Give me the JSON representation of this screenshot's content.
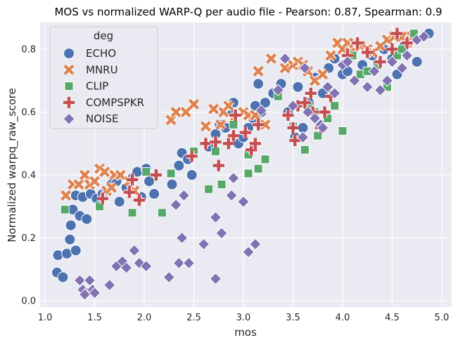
{
  "chart_data": {
    "type": "scatter",
    "title": "MOS vs normalized WARP-Q per audio file - Pearson: 0.87, Spearman: 0.9",
    "xlabel": "mos",
    "ylabel": "Normalized warpq_raw_score",
    "xlim": [
      0.95,
      5.1
    ],
    "ylim": [
      -0.02,
      0.885
    ],
    "xticks": [
      "1.0",
      "1.5",
      "2.0",
      "2.5",
      "3.0",
      "3.5",
      "4.0",
      "4.5",
      "5.0"
    ],
    "yticks": [
      "0.0",
      "0.2",
      "0.4",
      "0.6",
      "0.8"
    ],
    "grid": true,
    "background": "#eaeaf2",
    "legend": {
      "title": "deg",
      "placement": "top-left",
      "entries": [
        "ECHO",
        "MNRU",
        "CLIP",
        "COMPSPKR",
        "NOISE"
      ]
    },
    "series": [
      {
        "name": "ECHO",
        "marker": "circle",
        "color": "#4c72b0",
        "points": [
          [
            1.13,
            0.145
          ],
          [
            1.12,
            0.09
          ],
          [
            1.18,
            0.075
          ],
          [
            1.22,
            0.15
          ],
          [
            1.25,
            0.195
          ],
          [
            1.26,
            0.24
          ],
          [
            1.28,
            0.29
          ],
          [
            1.31,
            0.335
          ],
          [
            1.31,
            0.16
          ],
          [
            1.35,
            0.27
          ],
          [
            1.38,
            0.33
          ],
          [
            1.42,
            0.26
          ],
          [
            1.46,
            0.34
          ],
          [
            1.52,
            0.325
          ],
          [
            1.58,
            0.34
          ],
          [
            1.62,
            0.35
          ],
          [
            1.67,
            0.37
          ],
          [
            1.72,
            0.38
          ],
          [
            1.75,
            0.315
          ],
          [
            1.82,
            0.36
          ],
          [
            1.88,
            0.39
          ],
          [
            1.93,
            0.41
          ],
          [
            1.97,
            0.33
          ],
          [
            2.02,
            0.42
          ],
          [
            2.05,
            0.38
          ],
          [
            2.1,
            0.34
          ],
          [
            2.28,
            0.37
          ],
          [
            2.35,
            0.43
          ],
          [
            2.38,
            0.47
          ],
          [
            2.44,
            0.45
          ],
          [
            2.48,
            0.4
          ],
          [
            2.65,
            0.49
          ],
          [
            2.72,
            0.53
          ],
          [
            2.76,
            0.56
          ],
          [
            2.82,
            0.55
          ],
          [
            2.86,
            0.6
          ],
          [
            2.9,
            0.63
          ],
          [
            2.95,
            0.5
          ],
          [
            3.0,
            0.52
          ],
          [
            3.05,
            0.55
          ],
          [
            3.1,
            0.58
          ],
          [
            3.12,
            0.62
          ],
          [
            3.15,
            0.69
          ],
          [
            3.18,
            0.6
          ],
          [
            3.22,
            0.63
          ],
          [
            3.3,
            0.66
          ],
          [
            3.38,
            0.69
          ],
          [
            3.45,
            0.6
          ],
          [
            3.52,
            0.52
          ],
          [
            3.55,
            0.68
          ],
          [
            3.6,
            0.55
          ],
          [
            3.66,
            0.63
          ],
          [
            3.72,
            0.71
          ],
          [
            3.8,
            0.66
          ],
          [
            3.86,
            0.74
          ],
          [
            3.92,
            0.77
          ],
          [
            4.0,
            0.72
          ],
          [
            4.05,
            0.73
          ],
          [
            4.1,
            0.79
          ],
          [
            4.2,
            0.75
          ],
          [
            4.3,
            0.78
          ],
          [
            4.42,
            0.8
          ],
          [
            4.5,
            0.77
          ],
          [
            4.55,
            0.72
          ],
          [
            4.62,
            0.81
          ],
          [
            4.7,
            0.84
          ],
          [
            4.75,
            0.76
          ],
          [
            4.87,
            0.85
          ]
        ]
      },
      {
        "name": "MNRU",
        "marker": "x",
        "color": "#dd8452",
        "points": [
          [
            1.21,
            0.335
          ],
          [
            1.28,
            0.37
          ],
          [
            1.34,
            0.37
          ],
          [
            1.4,
            0.4
          ],
          [
            1.45,
            0.37
          ],
          [
            1.5,
            0.38
          ],
          [
            1.55,
            0.42
          ],
          [
            1.6,
            0.41
          ],
          [
            1.62,
            0.35
          ],
          [
            1.67,
            0.36
          ],
          [
            1.7,
            0.4
          ],
          [
            1.76,
            0.4
          ],
          [
            1.85,
            0.38
          ],
          [
            1.9,
            0.35
          ],
          [
            2.27,
            0.575
          ],
          [
            2.32,
            0.6
          ],
          [
            2.42,
            0.6
          ],
          [
            2.5,
            0.625
          ],
          [
            2.62,
            0.555
          ],
          [
            2.7,
            0.61
          ],
          [
            2.77,
            0.56
          ],
          [
            2.8,
            0.6
          ],
          [
            2.85,
            0.62
          ],
          [
            2.9,
            0.58
          ],
          [
            3.0,
            0.6
          ],
          [
            3.05,
            0.59
          ],
          [
            3.12,
            0.59
          ],
          [
            3.15,
            0.73
          ],
          [
            3.22,
            0.56
          ],
          [
            3.28,
            0.77
          ],
          [
            3.42,
            0.74
          ],
          [
            3.5,
            0.75
          ],
          [
            3.55,
            0.76
          ],
          [
            3.6,
            0.75
          ],
          [
            3.65,
            0.73
          ],
          [
            3.72,
            0.7
          ],
          [
            3.8,
            0.72
          ],
          [
            3.88,
            0.78
          ],
          [
            3.95,
            0.82
          ],
          [
            4.0,
            0.8
          ],
          [
            4.05,
            0.82
          ],
          [
            4.08,
            0.79
          ],
          [
            4.12,
            0.82
          ],
          [
            4.18,
            0.81
          ],
          [
            4.25,
            0.8
          ],
          [
            4.3,
            0.79
          ],
          [
            4.38,
            0.81
          ],
          [
            4.45,
            0.83
          ],
          [
            4.52,
            0.84
          ],
          [
            4.6,
            0.84
          ],
          [
            4.65,
            0.82
          ],
          [
            4.7,
            0.84
          ]
        ]
      },
      {
        "name": "CLIP",
        "marker": "square",
        "color": "#55a868",
        "points": [
          [
            1.2,
            0.29
          ],
          [
            1.55,
            0.3
          ],
          [
            1.88,
            0.28
          ],
          [
            2.02,
            0.41
          ],
          [
            2.18,
            0.28
          ],
          [
            2.27,
            0.405
          ],
          [
            2.5,
            0.475
          ],
          [
            2.65,
            0.355
          ],
          [
            2.72,
            0.475
          ],
          [
            2.78,
            0.37
          ],
          [
            2.9,
            0.56
          ],
          [
            3.05,
            0.465
          ],
          [
            3.05,
            0.405
          ],
          [
            3.15,
            0.42
          ],
          [
            3.22,
            0.45
          ],
          [
            3.35,
            0.65
          ],
          [
            3.5,
            0.555
          ],
          [
            3.62,
            0.48
          ],
          [
            3.65,
            0.62
          ],
          [
            3.72,
            0.6
          ],
          [
            3.75,
            0.525
          ],
          [
            3.85,
            0.58
          ],
          [
            3.92,
            0.62
          ],
          [
            4.0,
            0.54
          ],
          [
            4.1,
            0.78
          ],
          [
            4.18,
            0.72
          ],
          [
            4.25,
            0.73
          ],
          [
            4.35,
            0.75
          ],
          [
            4.45,
            0.68
          ],
          [
            4.55,
            0.78
          ],
          [
            4.6,
            0.8
          ],
          [
            4.72,
            0.85
          ]
        ]
      },
      {
        "name": "COMPSPKR",
        "marker": "plus",
        "color": "#c44e52",
        "points": [
          [
            1.58,
            0.325
          ],
          [
            1.85,
            0.345
          ],
          [
            1.88,
            0.385
          ],
          [
            1.95,
            0.32
          ],
          [
            2.12,
            0.4
          ],
          [
            2.48,
            0.46
          ],
          [
            2.62,
            0.5
          ],
          [
            2.72,
            0.505
          ],
          [
            2.75,
            0.43
          ],
          [
            2.85,
            0.5
          ],
          [
            2.9,
            0.525
          ],
          [
            2.92,
            0.59
          ],
          [
            3.02,
            0.535
          ],
          [
            3.08,
            0.48
          ],
          [
            3.12,
            0.5
          ],
          [
            3.15,
            0.56
          ],
          [
            3.45,
            0.59
          ],
          [
            3.5,
            0.55
          ],
          [
            3.52,
            0.51
          ],
          [
            3.55,
            0.62
          ],
          [
            3.62,
            0.63
          ],
          [
            3.68,
            0.66
          ],
          [
            3.7,
            0.6
          ],
          [
            3.78,
            0.55
          ],
          [
            3.82,
            0.6
          ],
          [
            3.88,
            0.65
          ],
          [
            4.05,
            0.78
          ],
          [
            4.15,
            0.82
          ],
          [
            4.25,
            0.79
          ],
          [
            4.38,
            0.76
          ],
          [
            4.5,
            0.8
          ],
          [
            4.55,
            0.85
          ],
          [
            4.65,
            0.82
          ]
        ]
      },
      {
        "name": "NOISE",
        "marker": "diamond",
        "color": "#8172b3",
        "points": [
          [
            1.35,
            0.065
          ],
          [
            1.38,
            0.035
          ],
          [
            1.42,
            0.025
          ],
          [
            1.45,
            0.065
          ],
          [
            1.48,
            0.035
          ],
          [
            1.4,
            0.02
          ],
          [
            1.5,
            0.025
          ],
          [
            1.65,
            0.05
          ],
          [
            1.72,
            0.11
          ],
          [
            1.78,
            0.125
          ],
          [
            1.82,
            0.105
          ],
          [
            1.9,
            0.16
          ],
          [
            1.95,
            0.12
          ],
          [
            2.02,
            0.11
          ],
          [
            2.25,
            0.075
          ],
          [
            2.32,
            0.305
          ],
          [
            2.35,
            0.12
          ],
          [
            2.38,
            0.2
          ],
          [
            2.4,
            0.335
          ],
          [
            2.45,
            0.12
          ],
          [
            2.6,
            0.18
          ],
          [
            2.72,
            0.265
          ],
          [
            2.78,
            0.215
          ],
          [
            2.88,
            0.335
          ],
          [
            2.9,
            0.39
          ],
          [
            2.72,
            0.07
          ],
          [
            3.0,
            0.315
          ],
          [
            3.05,
            0.155
          ],
          [
            3.12,
            0.18
          ],
          [
            3.18,
            0.605
          ],
          [
            3.35,
            0.67
          ],
          [
            3.42,
            0.77
          ],
          [
            3.5,
            0.62
          ],
          [
            3.6,
            0.52
          ],
          [
            3.62,
            0.74
          ],
          [
            3.65,
            0.6
          ],
          [
            3.72,
            0.58
          ],
          [
            3.78,
            0.56
          ],
          [
            3.8,
            0.55
          ],
          [
            3.85,
            0.68
          ],
          [
            3.92,
            0.66
          ],
          [
            4.0,
            0.75
          ],
          [
            4.05,
            0.76
          ],
          [
            4.12,
            0.7
          ],
          [
            4.25,
            0.68
          ],
          [
            4.32,
            0.73
          ],
          [
            4.38,
            0.67
          ],
          [
            4.45,
            0.7
          ],
          [
            4.5,
            0.76
          ],
          [
            4.6,
            0.74
          ],
          [
            4.65,
            0.78
          ],
          [
            4.75,
            0.83
          ],
          [
            4.82,
            0.84
          ]
        ]
      }
    ]
  }
}
